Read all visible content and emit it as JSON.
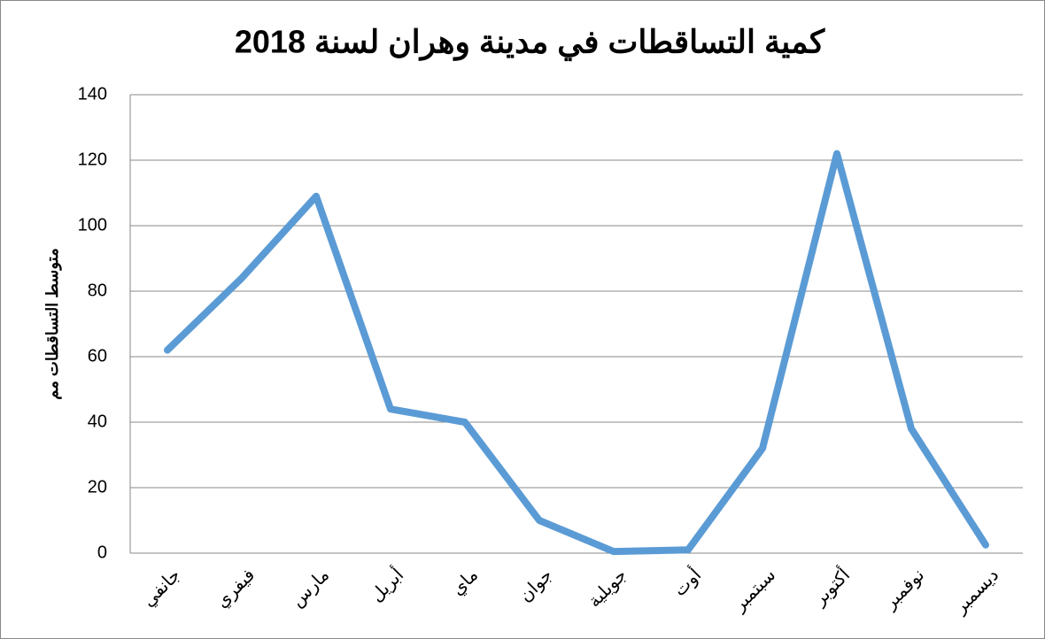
{
  "chart_data": {
    "type": "line",
    "title": "كمية التساقطات في مدينة وهران لسنة 2018",
    "y_label": "متوسط التساقطات مم",
    "categories": [
      "جانفي",
      "فيفري",
      "مارس",
      "أبريل",
      "ماي",
      "جوان",
      "جويلية",
      "أوت",
      "سبتمبر",
      "أكتوبر",
      "نوفمبر",
      "ديسمبر"
    ],
    "series": [
      {
        "name": "متوسط التساقطات مم",
        "color": "#5b9bd5",
        "values": [
          62,
          84,
          109,
          44,
          40,
          10,
          0.5,
          1,
          32,
          122,
          38,
          2.5
        ]
      }
    ],
    "ylim": [
      0,
      140
    ],
    "yticks": [
      0,
      20,
      40,
      60,
      80,
      100,
      120,
      140
    ],
    "grid": true
  }
}
